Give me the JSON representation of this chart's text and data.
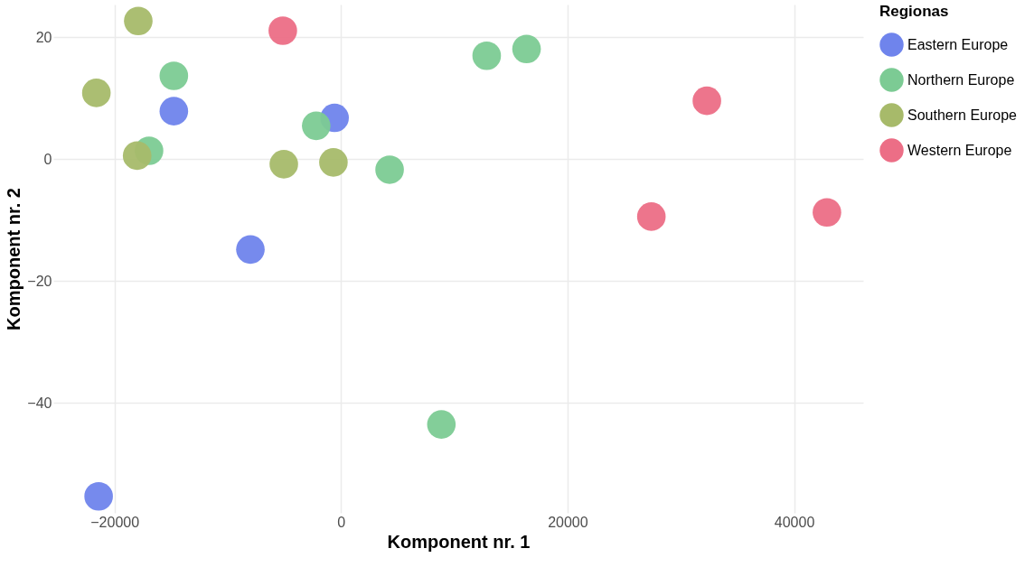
{
  "chart_data": {
    "type": "scatter",
    "xlabel": "Komponent  nr. 1",
    "ylabel": "Komponent  nr. 2",
    "legend_title": "Regionas",
    "legend": "right",
    "grid": true,
    "marker": "circle",
    "xlim": [
      -25400,
      46100
    ],
    "xticks": [
      -20000,
      0,
      20000,
      40000
    ],
    "ylim": [
      -58,
      25.4
    ],
    "yticks": [
      -40,
      -20,
      0,
      20
    ],
    "series": [
      {
        "name": "Eastern Europe",
        "color": "#6f84ec",
        "x": [
          -14760,
          -570,
          -8000,
          -21400
        ],
        "values": [
          7.9,
          6.8,
          -14.8,
          -55.3
        ]
      },
      {
        "name": "Northern Europe",
        "color": "#7ccb94",
        "x": [
          -14760,
          -16950,
          -2190,
          4290,
          12860,
          16380,
          8860
        ],
        "values": [
          13.7,
          1.4,
          5.5,
          -1.7,
          17.0,
          18.1,
          -43.5
        ]
      },
      {
        "name": "Southern Europe",
        "color": "#a7ba6a",
        "x": [
          -17900,
          -21600,
          -18000,
          -5050,
          -670
        ],
        "values": [
          22.7,
          10.9,
          0.6,
          -0.8,
          -0.5
        ]
      },
      {
        "name": "Western Europe",
        "color": "#ec6e86",
        "x": [
          -5140,
          32300,
          27400,
          42900
        ],
        "values": [
          21.1,
          9.6,
          -9.4,
          -8.7
        ]
      }
    ]
  }
}
